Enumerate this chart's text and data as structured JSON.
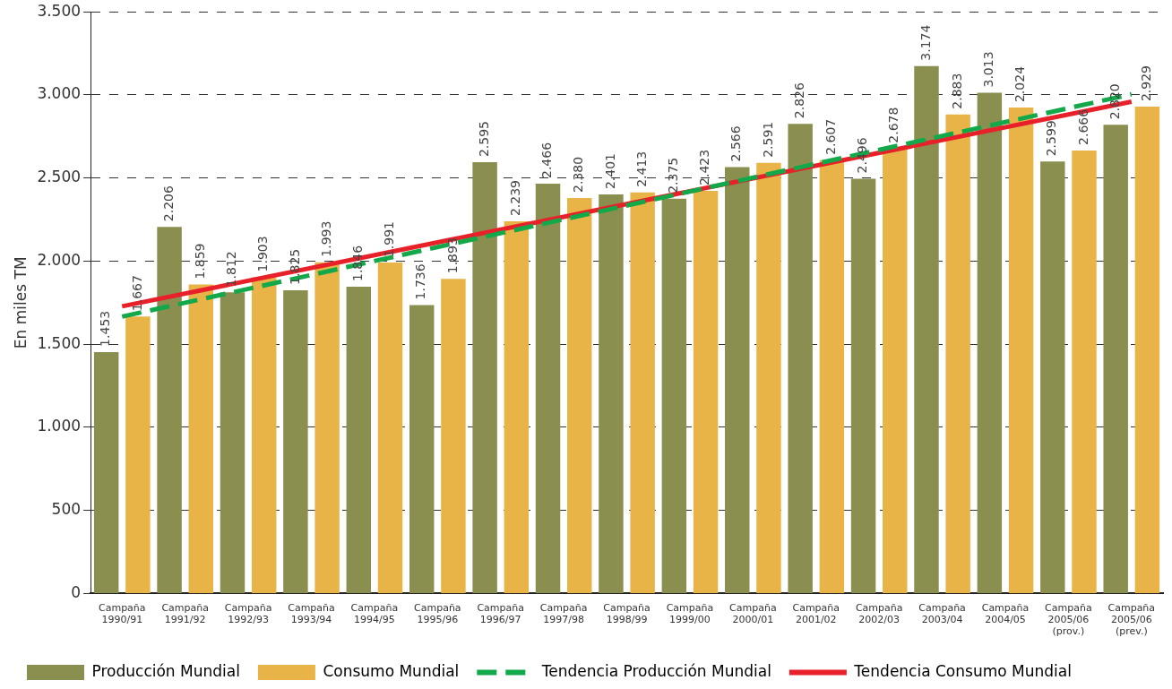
{
  "chart_data": {
    "type": "bar",
    "ylabel": "En miles TM",
    "categories": [
      "Campaña\n1990/91",
      "Campaña\n1991/92",
      "Campaña\n1992/93",
      "Campaña\n1993/94",
      "Campaña\n1994/95",
      "Campaña\n1995/96",
      "Campaña\n1996/97",
      "Campaña\n1997/98",
      "Campaña\n1998/99",
      "Campaña\n1999/00",
      "Campaña\n2000/01",
      "Campaña\n2001/02",
      "Campaña\n2002/03",
      "Campaña\n2003/04",
      "Campaña\n2004/05",
      "Campaña\n2005/06\n(prov.)",
      "Campaña\n2005/06\n(prev.)"
    ],
    "series": [
      {
        "name": "Producción Mundial",
        "color": "#8a8f50",
        "values": [
          1453,
          2206,
          1812,
          1825,
          1846,
          1736,
          2595,
          2466,
          2401,
          2375,
          2566,
          2826,
          2496,
          3174,
          3013,
          2599,
          2820
        ],
        "value_labels": [
          "1.453",
          "2.206",
          "1.812",
          "1.825",
          "1.846",
          "1.736",
          "2.595",
          "2.466",
          "2.401",
          "2.375",
          "2.566",
          "2.826",
          "2.496",
          "3.174",
          "3.013",
          "2.599",
          "2.820"
        ]
      },
      {
        "name": "Consumo Mundial",
        "color": "#e8b447",
        "values": [
          1667,
          1859,
          1903,
          1993,
          1991,
          1893,
          2239,
          2380,
          2413,
          2423,
          2591,
          2607,
          2678,
          2883,
          2924,
          2666,
          2929
        ],
        "value_labels": [
          "1.667",
          "1.859",
          "1.903",
          "1.993",
          "1.991",
          "1.893",
          "2.239",
          "2.380",
          "2.413",
          "2.423",
          "2.591",
          "2.607",
          "2.678",
          "2.883",
          null,
          "2.666",
          "2.929"
        ]
      },
      {
        "name": "Tendencia Producción Mundial",
        "type": "line",
        "color": "#13a94a",
        "line_style": "dashed",
        "x": [
          "Campaña\n1990/91",
          "Campaña\n2005/06\n(prev.)"
        ],
        "values": [
          1666,
          3004
        ]
      },
      {
        "name": "Tendencia Consumo Mundial",
        "type": "line",
        "color": "#e8202a",
        "line_style": "solid",
        "x": [
          "Campaña\n1990/91",
          "Campaña\n2005/06\n(prev.)"
        ],
        "values": [
          1728,
          2959
        ]
      }
    ],
    "ylim": [
      0,
      3500
    ],
    "yticks": [
      {
        "value": 0,
        "label": "0"
      },
      {
        "value": 500,
        "label": "500"
      },
      {
        "value": 1000,
        "label": "1.000"
      },
      {
        "value": 1500,
        "label": "1.500"
      },
      {
        "value": 2000,
        "label": "2.000"
      },
      {
        "value": 2500,
        "label": "2.500"
      },
      {
        "value": 3000,
        "label": "3.000"
      },
      {
        "value": 3500,
        "label": "3.500"
      }
    ],
    "annotations": [
      {
        "text": "2.024",
        "x": "Campaña\n2004/05",
        "y": 2924
      }
    ],
    "grid": "y",
    "legend": "bottom",
    "marker": "none"
  }
}
